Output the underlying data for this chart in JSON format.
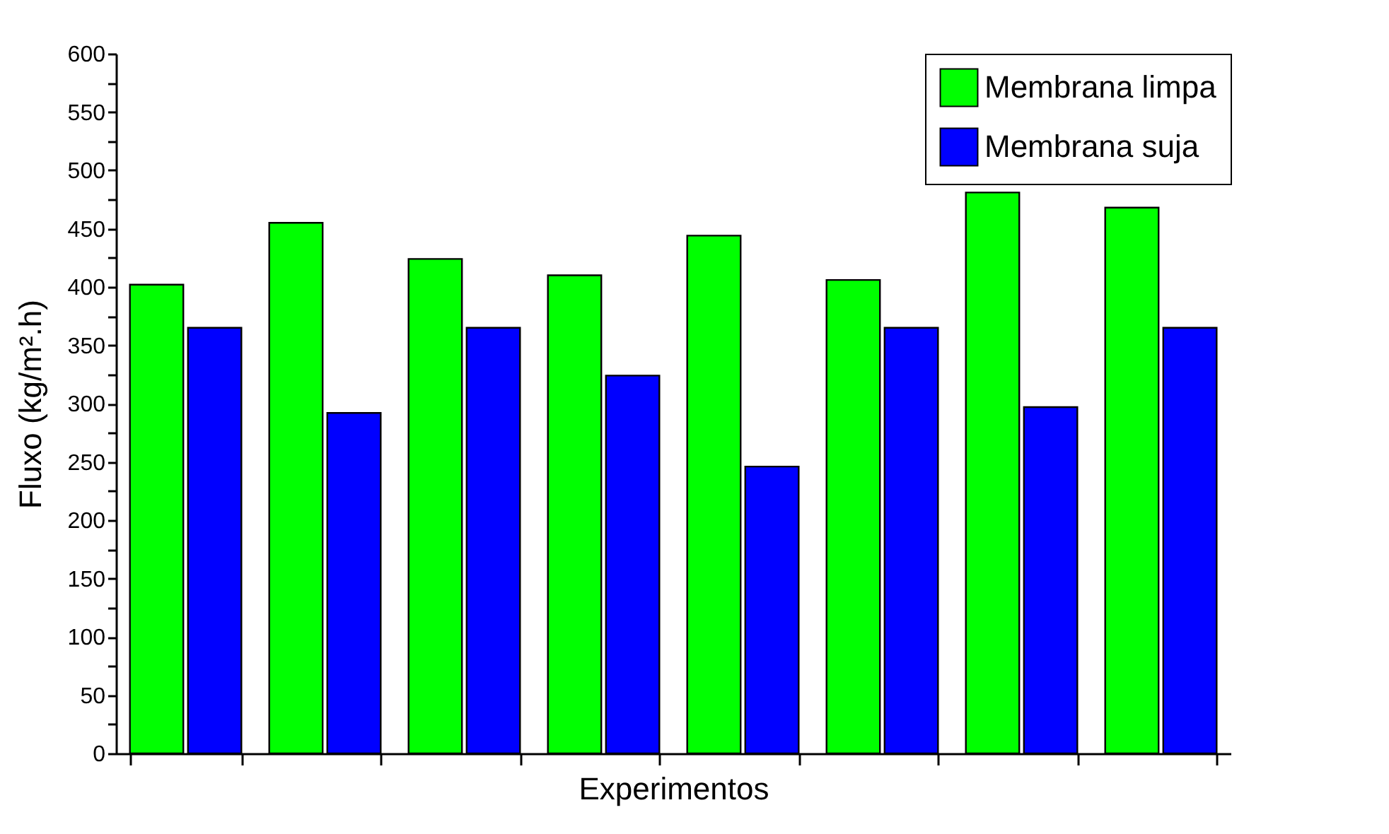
{
  "chart_data": {
    "type": "bar",
    "xlabel": "Experimentos",
    "ylabel": "Fluxo (kg/m².h)",
    "categories": [
      null,
      null,
      null,
      null,
      null,
      null,
      null,
      null
    ],
    "series": [
      {
        "name": "Membrana limpa",
        "color": "#00ff00",
        "values": [
          402,
          455,
          424,
          410,
          444,
          406,
          481,
          468
        ]
      },
      {
        "name": "Membrana suja",
        "color": "#0000ff",
        "values": [
          365,
          292,
          365,
          324,
          246,
          365,
          297,
          365
        ]
      }
    ],
    "ylim": [
      0,
      600
    ],
    "yticks": [
      0,
      {
        "value": 25,
        "label": null
      },
      50,
      {
        "value": 75,
        "label": null
      },
      100,
      {
        "value": 125,
        "label": null
      },
      150,
      {
        "value": 175,
        "label": null
      },
      200,
      {
        "value": 225,
        "label": null
      },
      250,
      {
        "value": 275,
        "label": null
      },
      300,
      {
        "value": 325,
        "label": null
      },
      350,
      {
        "value": 375,
        "label": null
      },
      400,
      {
        "value": 425,
        "label": null
      },
      450,
      {
        "value": 475,
        "label": null
      },
      500,
      {
        "value": 525,
        "label": null
      },
      550,
      {
        "value": 575,
        "label": null
      },
      600
    ],
    "tick_labels": "y",
    "grid": false,
    "legend": "top right"
  }
}
